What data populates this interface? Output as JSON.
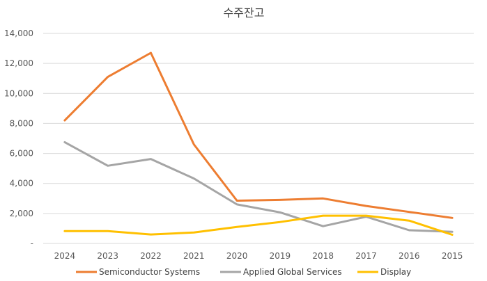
{
  "chart_data": {
    "type": "line",
    "title": "수주잔고",
    "xlabel": "",
    "ylabel": "",
    "categories": [
      "2024",
      "2023",
      "2022",
      "2021",
      "2020",
      "2019",
      "2018",
      "2017",
      "2016",
      "2015"
    ],
    "ylim": [
      0,
      14000
    ],
    "yticks": [
      0,
      2000,
      4000,
      6000,
      8000,
      10000,
      12000,
      14000
    ],
    "ytick_labels": [
      "-",
      "2,000",
      "4,000",
      "6,000",
      "8,000",
      "10,000",
      "12,000",
      "14,000"
    ],
    "grid": true,
    "legend_position": "bottom",
    "series": [
      {
        "name": "Semiconductor Systems",
        "color": "#ED7D31",
        "values": [
          8200,
          11100,
          12700,
          6600,
          2850,
          2900,
          3000,
          2500,
          2100,
          1700
        ]
      },
      {
        "name": "Applied Global Services",
        "color": "#A5A5A5",
        "values": [
          6750,
          5180,
          5630,
          4330,
          2600,
          2070,
          1150,
          1780,
          880,
          780
        ]
      },
      {
        "name": "Display",
        "color": "#FFC000",
        "values": [
          820,
          820,
          600,
          730,
          1100,
          1430,
          1850,
          1850,
          1520,
          580
        ]
      }
    ]
  }
}
